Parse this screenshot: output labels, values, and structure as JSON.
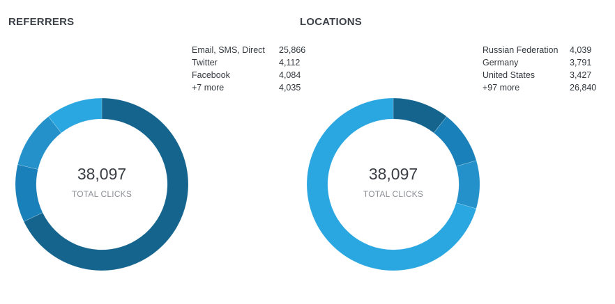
{
  "referrers": {
    "title": "REFERRERS",
    "total": "38,097",
    "total_label": "TOTAL CLICKS",
    "legend": [
      {
        "label": "Email, SMS, Direct",
        "value": "25,866"
      },
      {
        "label": "Twitter",
        "value": "4,112"
      },
      {
        "label": "Facebook",
        "value": "4,084"
      },
      {
        "label": "+7 more",
        "value": "4,035"
      }
    ]
  },
  "locations": {
    "title": "LOCATIONS",
    "total": "38,097",
    "total_label": "TOTAL CLICKS",
    "legend": [
      {
        "label": "Russian Federation",
        "value": "4,039"
      },
      {
        "label": "Germany",
        "value": "3,791"
      },
      {
        "label": "United States",
        "value": "3,427"
      },
      {
        "label": "+97 more",
        "value": "26,840"
      }
    ]
  },
  "colors": [
    "#14648d",
    "#1a80b9",
    "#2491cb",
    "#2aa6e0"
  ],
  "chart_data": [
    {
      "type": "pie",
      "title": "REFERRERS",
      "subtitle": "38,097 TOTAL CLICKS",
      "donut": true,
      "categories": [
        "Email, SMS, Direct",
        "Twitter",
        "Facebook",
        "+7 more"
      ],
      "values": [
        25866,
        4112,
        4084,
        4035
      ],
      "colors": [
        "#14648d",
        "#1a80b9",
        "#2491cb",
        "#2aa6e0"
      ],
      "legend_position": "top-right"
    },
    {
      "type": "pie",
      "title": "LOCATIONS",
      "subtitle": "38,097 TOTAL CLICKS",
      "donut": true,
      "categories": [
        "Russian Federation",
        "Germany",
        "United States",
        "+97 more"
      ],
      "values": [
        4039,
        3791,
        3427,
        26840
      ],
      "colors": [
        "#14648d",
        "#1a80b9",
        "#2491cb",
        "#2aa6e0"
      ],
      "legend_position": "top-right"
    }
  ]
}
